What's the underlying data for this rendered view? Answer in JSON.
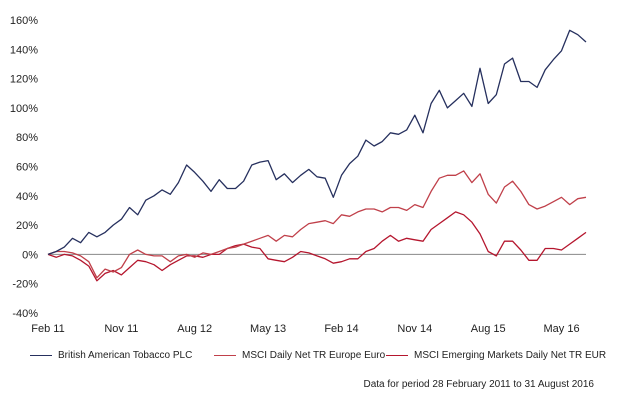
{
  "chart_data": {
    "type": "line",
    "title": "",
    "xlabel": "",
    "ylabel": "",
    "ylim": [
      -40,
      160
    ],
    "yticks": [
      -40,
      -20,
      0,
      20,
      40,
      60,
      80,
      100,
      120,
      140,
      160
    ],
    "ytick_labels": [
      "-40%",
      "-20%",
      "0%",
      "20%",
      "40%",
      "60%",
      "80%",
      "100%",
      "120%",
      "140%",
      "160%"
    ],
    "x_count": 67,
    "xticks": [
      {
        "index": 0,
        "label": "Feb 11"
      },
      {
        "index": 9,
        "label": "Nov 11"
      },
      {
        "index": 18,
        "label": "Aug 12"
      },
      {
        "index": 27,
        "label": "May 13"
      },
      {
        "index": 36,
        "label": "Feb 14"
      },
      {
        "index": 45,
        "label": "Nov 14"
      },
      {
        "index": 54,
        "label": "Aug 15"
      },
      {
        "index": 63,
        "label": "May 16"
      }
    ],
    "grid": false,
    "series": [
      {
        "name": "British American Tobacco PLC",
        "color": "#26305e",
        "values": [
          0,
          2,
          5,
          11,
          8,
          15,
          12,
          15,
          20,
          24,
          32,
          27,
          37,
          40,
          44,
          41,
          49,
          61,
          56,
          50,
          43,
          51,
          45,
          45,
          50,
          61,
          63,
          64,
          51,
          55,
          49,
          54,
          58,
          53,
          52,
          39,
          54,
          62,
          67,
          78,
          74,
          77,
          83,
          82,
          85,
          95,
          83,
          103,
          112,
          100,
          105,
          110,
          101,
          127,
          103,
          109,
          130,
          134,
          118,
          118,
          114,
          126,
          133,
          139,
          153,
          150,
          145
        ]
      },
      {
        "name": "MSCI Daily Net TR Europe Euro",
        "color": "#c0404a",
        "values": [
          0,
          2,
          2,
          1,
          -1,
          -5,
          -16,
          -10,
          -12,
          -9,
          0,
          3,
          0,
          -1,
          -1,
          -5,
          -1,
          0,
          -2,
          1,
          0,
          2,
          4,
          5,
          7,
          9,
          11,
          13,
          9,
          13,
          12,
          17,
          21,
          22,
          23,
          21,
          27,
          26,
          29,
          31,
          31,
          29,
          32,
          32,
          30,
          34,
          32,
          43,
          52,
          54,
          54,
          57,
          49,
          55,
          41,
          35,
          46,
          50,
          43,
          34,
          31,
          33,
          36,
          39,
          34,
          38,
          39
        ]
      },
      {
        "name": "MSCI Emerging Markets Daily Net TR EUR",
        "color": "#b5162e",
        "values": [
          0,
          -2,
          0,
          -1,
          -4,
          -8,
          -18,
          -13,
          -11,
          -14,
          -9,
          -4,
          -5,
          -7,
          -11,
          -7,
          -4,
          -1,
          -1,
          -2,
          0,
          0,
          4,
          6,
          7,
          5,
          4,
          -3,
          -4,
          -5,
          -2,
          2,
          1,
          -1,
          -3,
          -6,
          -5,
          -3,
          -3,
          2,
          4,
          9,
          13,
          9,
          11,
          10,
          9,
          17,
          21,
          25,
          29,
          27,
          22,
          14,
          2,
          -1,
          9,
          9,
          3,
          -4,
          -4,
          4,
          4,
          3,
          7,
          11,
          15
        ]
      }
    ]
  },
  "footnote": "Data for period 28 February 2011 to 31 August 2016"
}
